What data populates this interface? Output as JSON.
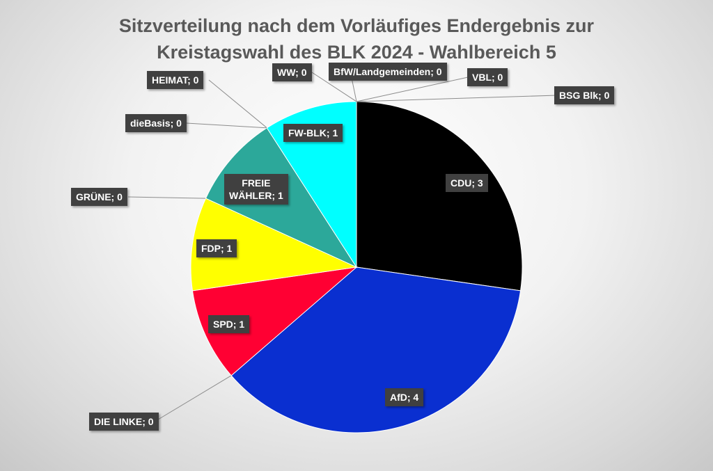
{
  "chart_data": {
    "type": "pie",
    "title": "Sitzverteilung nach dem Vorläufiges Endergebnis zur Kreistagswahl des BLK 2024 - Wahlbereich 5",
    "title_lines": [
      "Sitzverteilung nach dem Vorläufiges Endergebnis zur",
      "Kreistagswahl des BLK 2024 - Wahlbereich 5"
    ],
    "legend": "none",
    "slices": [
      {
        "name": "CDU",
        "value": 3,
        "color": "#000000",
        "label": "CDU; 3"
      },
      {
        "name": "AfD",
        "value": 4,
        "color": "#0a2fd0",
        "label": "AfD; 4"
      },
      {
        "name": "DIE LINKE",
        "value": 0,
        "color": "#b0005b",
        "label": "DIE LINKE; 0"
      },
      {
        "name": "SPD",
        "value": 1,
        "color": "#ff0033",
        "label": "SPD; 1"
      },
      {
        "name": "FDP",
        "value": 1,
        "color": "#ffff00",
        "label": "FDP; 1"
      },
      {
        "name": "GRÜNE",
        "value": 0,
        "color": "#33aa33",
        "label": "GRÜNE; 0"
      },
      {
        "name": "FREIE WÄHLER",
        "value": 1,
        "color": "#2ca89a",
        "label": "FREIE WÄHLER; 1"
      },
      {
        "name": "dieBasis",
        "value": 0,
        "color": "#777777",
        "label": "dieBasis; 0"
      },
      {
        "name": "HEIMAT",
        "value": 0,
        "color": "#8b4513",
        "label": "HEIMAT; 0"
      },
      {
        "name": "FW-BLK",
        "value": 1,
        "color": "#00ffff",
        "label": "FW-BLK; 1"
      },
      {
        "name": "WW",
        "value": 0,
        "color": "#999999",
        "label": "WW; 0"
      },
      {
        "name": "BfW/Landgemeinden",
        "value": 0,
        "color": "#999999",
        "label": "BfW/Landgemeinden; 0"
      },
      {
        "name": "VBL",
        "value": 0,
        "color": "#999999",
        "label": "VBL; 0"
      },
      {
        "name": "BSG Blk",
        "value": 0,
        "color": "#999999",
        "label": "BSG Blk; 0"
      }
    ]
  }
}
